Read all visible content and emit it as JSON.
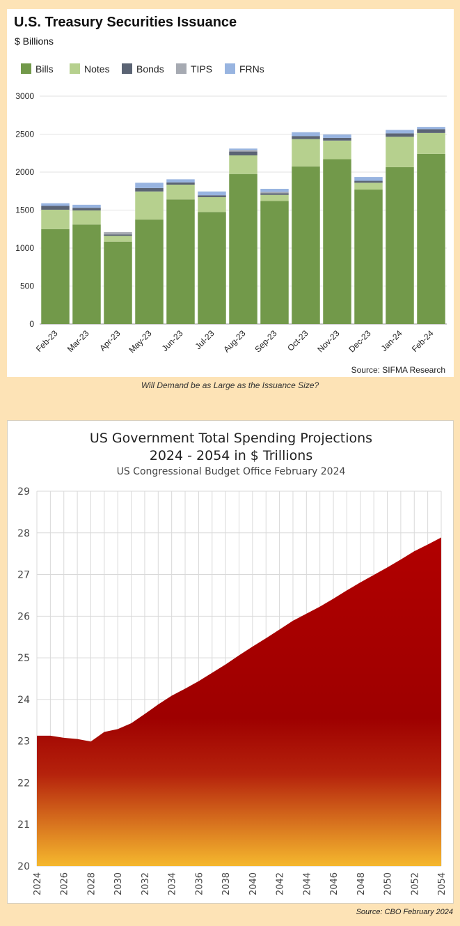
{
  "caption": "Will Demand be as Large as the Issuance Size?",
  "source2": "Source: CBO February 2024",
  "chart_data": [
    {
      "type": "bar",
      "stacked": true,
      "title": "U.S. Treasury Securities Issuance",
      "subtitle": "$ Billions",
      "source": "Source: SIFMA Research",
      "legend_position": "top-left",
      "grid": true,
      "ylim": [
        0,
        3000
      ],
      "yticks": [
        0,
        500,
        1000,
        1500,
        2000,
        2500,
        3000
      ],
      "categories": [
        "Feb-23",
        "Mar-23",
        "Apr-23",
        "May-23",
        "Jun-23",
        "Jul-23",
        "Aug-23",
        "Sep-23",
        "Oct-23",
        "Nov-23",
        "Dec-23",
        "Jan-24",
        "Feb-24"
      ],
      "series": [
        {
          "name": "Bills",
          "color": "#72994a",
          "values": [
            1250,
            1310,
            1085,
            1375,
            1640,
            1475,
            1975,
            1620,
            2075,
            2170,
            1770,
            2065,
            2240
          ]
        },
        {
          "name": "Notes",
          "color": "#b6d08e",
          "values": [
            255,
            185,
            75,
            370,
            195,
            195,
            245,
            80,
            360,
            245,
            90,
            400,
            275
          ]
        },
        {
          "name": "Bonds",
          "color": "#5b6474",
          "values": [
            50,
            35,
            20,
            45,
            30,
            25,
            50,
            20,
            40,
            35,
            25,
            45,
            50
          ]
        },
        {
          "name": "TIPS",
          "color": "#a6aab2",
          "values": [
            0,
            0,
            30,
            0,
            0,
            0,
            20,
            20,
            0,
            0,
            0,
            0,
            0
          ]
        },
        {
          "name": "FRNs",
          "color": "#98b4e0",
          "values": [
            35,
            40,
            0,
            70,
            40,
            50,
            20,
            40,
            50,
            45,
            50,
            45,
            30
          ]
        }
      ]
    },
    {
      "type": "area",
      "title": "US Government Total Spending Projections",
      "title_line2": "2024 - 2054 in $ Trillions",
      "subtitle": "US Congressional Budget Office February 2024",
      "grid": true,
      "ylim": [
        20,
        29
      ],
      "yticks": [
        20,
        21,
        22,
        23,
        24,
        25,
        26,
        27,
        28,
        29
      ],
      "xticks": [
        2024,
        2026,
        2028,
        2030,
        2032,
        2034,
        2036,
        2038,
        2040,
        2042,
        2044,
        2046,
        2048,
        2050,
        2052,
        2054
      ],
      "x": [
        2024,
        2025,
        2026,
        2027,
        2028,
        2029,
        2030,
        2031,
        2032,
        2033,
        2034,
        2035,
        2036,
        2037,
        2038,
        2039,
        2040,
        2041,
        2042,
        2043,
        2044,
        2045,
        2046,
        2047,
        2048,
        2049,
        2050,
        2051,
        2052,
        2053,
        2054
      ],
      "y": [
        23.13,
        23.13,
        23.08,
        23.05,
        22.99,
        23.22,
        23.29,
        23.43,
        23.65,
        23.88,
        24.09,
        24.26,
        24.44,
        24.64,
        24.84,
        25.06,
        25.27,
        25.47,
        25.68,
        25.89,
        26.06,
        26.23,
        26.42,
        26.62,
        26.81,
        26.99,
        27.17,
        27.36,
        27.56,
        27.72,
        27.89
      ],
      "colors": {
        "top": "#b10000",
        "mid": "#9e0000",
        "bottom": "#f5b82e"
      }
    }
  ]
}
